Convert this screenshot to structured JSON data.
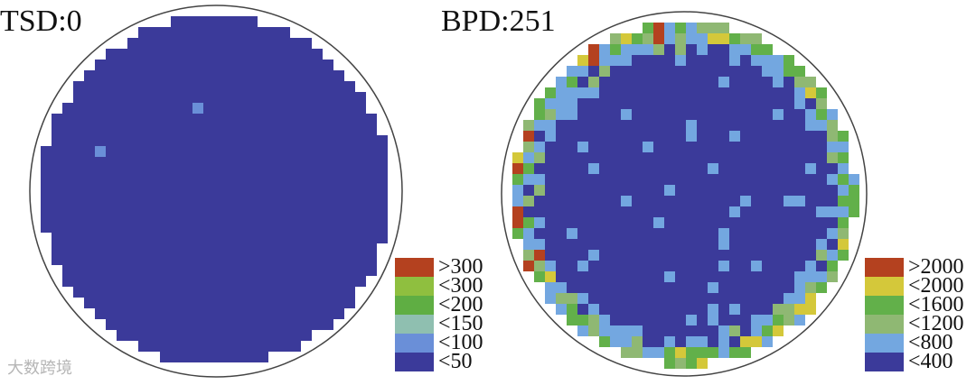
{
  "panels": [
    {
      "title": "TSD:0",
      "pattern": "uniform",
      "legend": [
        {
          "label": ">300",
          "color": "#b4411f"
        },
        {
          "label": "<300",
          "color": "#8fbf3f"
        },
        {
          "label": "<200",
          "color": "#5fae43"
        },
        {
          "label": "<150",
          "color": "#8fbfb0"
        },
        {
          "label": "<100",
          "color": "#6a8fd8"
        },
        {
          "label": "<50",
          "color": "#3b3a9a"
        }
      ]
    },
    {
      "title": "BPD:251",
      "pattern": "edge-heavy",
      "legend": [
        {
          "label": ">2000",
          "color": "#b4411f"
        },
        {
          "label": "<2000",
          "color": "#d4c83a"
        },
        {
          "label": "<1600",
          "color": "#62b04a"
        },
        {
          "label": "<1200",
          "color": "#8fb873"
        },
        {
          "label": "<800",
          "color": "#73a7e0"
        },
        {
          "label": "<400",
          "color": "#3b3a9a"
        }
      ]
    }
  ],
  "watermark": "大数跨境"
}
